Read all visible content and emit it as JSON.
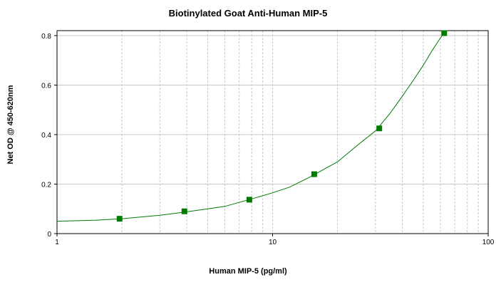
{
  "chart_data": {
    "type": "scatter",
    "title": "Biotinylated Goat Anti-Human MIP-5",
    "xlabel": "Human MIP-5 (pg/ml)",
    "ylabel": "Net OD @ 450-620nm",
    "x_scale": "log",
    "xlim": [
      1,
      100
    ],
    "ylim": [
      0,
      0.82
    ],
    "x_ticks": [
      1,
      10,
      100
    ],
    "x_tick_labels": [
      "1",
      "10",
      "100"
    ],
    "y_ticks": [
      0,
      0.2,
      0.4,
      0.6,
      0.8
    ],
    "y_tick_labels": [
      "0",
      "0.2",
      "0.4",
      "0.6",
      "0.8"
    ],
    "grid": true,
    "series": [
      {
        "color": "#007a00",
        "marker": "square",
        "fit": "curve",
        "x": [
          1.95,
          3.9,
          7.8,
          15.6,
          31.25,
          62.5
        ],
        "y": [
          0.06,
          0.09,
          0.137,
          0.24,
          0.425,
          0.81
        ]
      }
    ],
    "fit_curve": {
      "x": [
        1,
        1.5,
        2,
        3,
        4,
        5,
        6,
        8,
        10,
        12,
        15,
        20,
        25,
        30,
        35,
        40,
        45,
        50,
        55,
        60,
        62.5
      ],
      "y": [
        0.05,
        0.054,
        0.06,
        0.074,
        0.088,
        0.1,
        0.11,
        0.14,
        0.165,
        0.188,
        0.23,
        0.29,
        0.36,
        0.415,
        0.485,
        0.555,
        0.62,
        0.68,
        0.74,
        0.79,
        0.81
      ]
    }
  }
}
